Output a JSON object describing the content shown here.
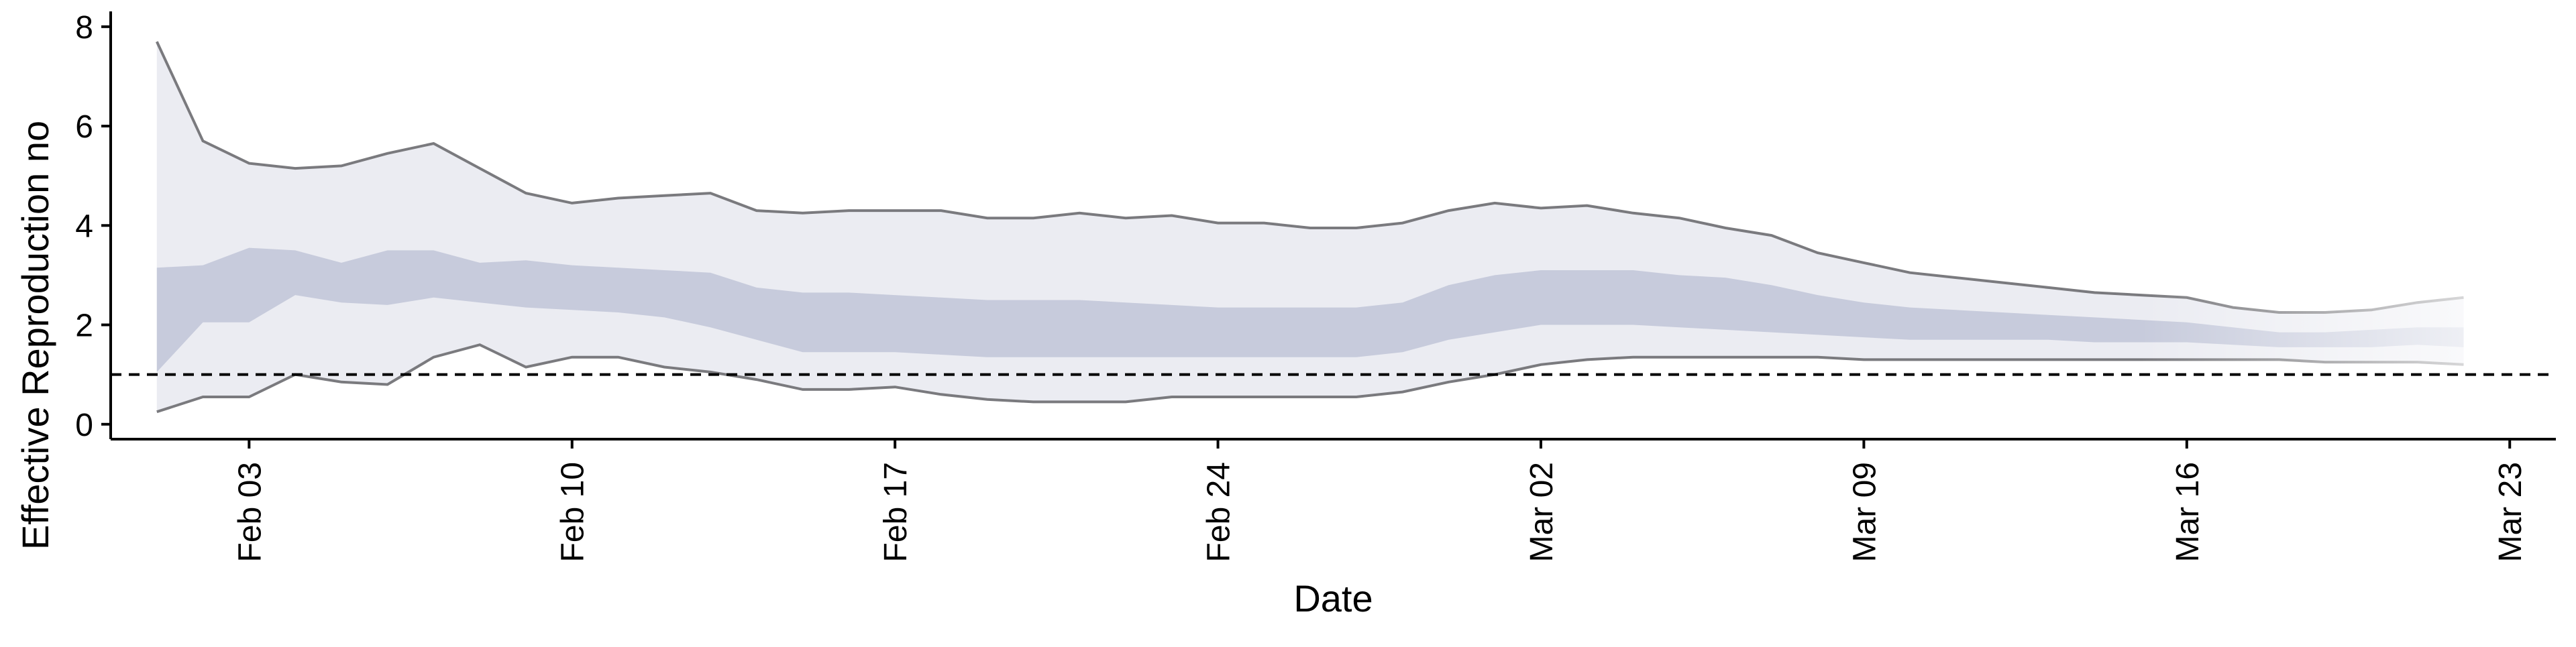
{
  "chart_data": {
    "type": "area",
    "xlabel": "Date",
    "ylabel": "Effective Reproduction no",
    "ylim": [
      -0.3,
      8.2
    ],
    "yticks": [
      0,
      2,
      4,
      6,
      8
    ],
    "xlim": [
      "2020-01-31",
      "2020-03-24"
    ],
    "xticks": [
      {
        "date": "2020-02-03",
        "label": "Feb 03"
      },
      {
        "date": "2020-02-10",
        "label": "Feb 10"
      },
      {
        "date": "2020-02-17",
        "label": "Feb 17"
      },
      {
        "date": "2020-02-24",
        "label": "Feb 24"
      },
      {
        "date": "2020-03-02",
        "label": "Mar 02"
      },
      {
        "date": "2020-03-09",
        "label": "Mar 09"
      },
      {
        "date": "2020-03-16",
        "label": "Mar 16"
      },
      {
        "date": "2020-03-23",
        "label": "Mar 23"
      }
    ],
    "reference_line": 1,
    "grid": false,
    "dates": [
      "2020-02-01",
      "2020-02-02",
      "2020-02-03",
      "2020-02-04",
      "2020-02-05",
      "2020-02-06",
      "2020-02-07",
      "2020-02-08",
      "2020-02-09",
      "2020-02-10",
      "2020-02-11",
      "2020-02-12",
      "2020-02-13",
      "2020-02-14",
      "2020-02-15",
      "2020-02-16",
      "2020-02-17",
      "2020-02-18",
      "2020-02-19",
      "2020-02-20",
      "2020-02-21",
      "2020-02-22",
      "2020-02-23",
      "2020-02-24",
      "2020-02-25",
      "2020-02-26",
      "2020-02-27",
      "2020-02-28",
      "2020-02-29",
      "2020-03-01",
      "2020-03-02",
      "2020-03-03",
      "2020-03-04",
      "2020-03-05",
      "2020-03-06",
      "2020-03-07",
      "2020-03-08",
      "2020-03-09",
      "2020-03-10",
      "2020-03-11",
      "2020-03-12",
      "2020-03-13",
      "2020-03-14",
      "2020-03-15",
      "2020-03-16",
      "2020-03-17",
      "2020-03-18",
      "2020-03-19",
      "2020-03-20",
      "2020-03-21",
      "2020-03-22"
    ],
    "upper_95": [
      7.7,
      5.7,
      5.25,
      5.15,
      5.2,
      5.45,
      5.65,
      5.15,
      4.65,
      4.45,
      4.55,
      4.6,
      4.65,
      4.3,
      4.25,
      4.3,
      4.3,
      4.3,
      4.15,
      4.15,
      4.25,
      4.15,
      4.2,
      4.05,
      4.05,
      3.95,
      3.95,
      4.05,
      4.3,
      4.45,
      4.35,
      4.4,
      4.25,
      4.15,
      3.95,
      3.8,
      3.45,
      3.25,
      3.05,
      2.95,
      2.85,
      2.75,
      2.65,
      2.6,
      2.55,
      2.35,
      2.25,
      2.25,
      2.3,
      2.45,
      2.55
    ],
    "lower_95": [
      0.25,
      0.55,
      0.55,
      1.0,
      0.85,
      0.8,
      1.35,
      1.6,
      1.15,
      1.35,
      1.35,
      1.15,
      1.05,
      0.9,
      0.7,
      0.7,
      0.75,
      0.6,
      0.5,
      0.45,
      0.45,
      0.45,
      0.55,
      0.55,
      0.55,
      0.55,
      0.55,
      0.65,
      0.85,
      1.0,
      1.2,
      1.3,
      1.35,
      1.35,
      1.35,
      1.35,
      1.35,
      1.3,
      1.3,
      1.3,
      1.3,
      1.3,
      1.3,
      1.3,
      1.3,
      1.3,
      1.3,
      1.25,
      1.25,
      1.25,
      1.2
    ],
    "upper_50": [
      3.15,
      3.2,
      3.55,
      3.5,
      3.25,
      3.5,
      3.5,
      3.25,
      3.3,
      3.2,
      3.15,
      3.1,
      3.05,
      2.75,
      2.65,
      2.65,
      2.6,
      2.55,
      2.5,
      2.5,
      2.5,
      2.45,
      2.4,
      2.35,
      2.35,
      2.35,
      2.35,
      2.45,
      2.8,
      3.0,
      3.1,
      3.1,
      3.1,
      3.0,
      2.95,
      2.8,
      2.6,
      2.45,
      2.35,
      2.3,
      2.25,
      2.2,
      2.15,
      2.1,
      2.05,
      1.95,
      1.85,
      1.85,
      1.9,
      1.95,
      1.95
    ],
    "lower_50": [
      1.05,
      2.05,
      2.05,
      2.6,
      2.45,
      2.4,
      2.55,
      2.45,
      2.35,
      2.3,
      2.25,
      2.15,
      1.95,
      1.7,
      1.45,
      1.45,
      1.45,
      1.4,
      1.35,
      1.35,
      1.35,
      1.35,
      1.35,
      1.35,
      1.35,
      1.35,
      1.35,
      1.45,
      1.7,
      1.85,
      2.0,
      2.0,
      2.0,
      1.95,
      1.9,
      1.85,
      1.8,
      1.75,
      1.7,
      1.7,
      1.7,
      1.7,
      1.65,
      1.65,
      1.65,
      1.6,
      1.55,
      1.55,
      1.55,
      1.6,
      1.55
    ],
    "colors": {
      "band_outer": "#ebecf2",
      "band_inner": "#c7cbdc",
      "bound_line": "#7a7a7e",
      "axis": "#000000",
      "reference_line": "#000000"
    }
  }
}
